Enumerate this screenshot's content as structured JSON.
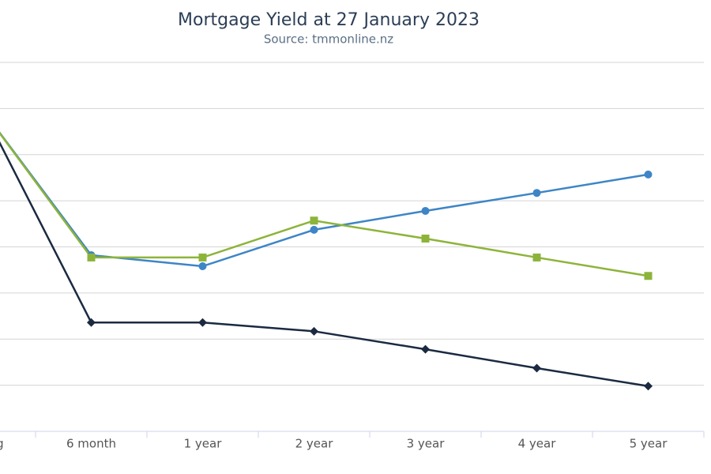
{
  "chart_data": {
    "type": "line",
    "title": "Mortgage Yield at 27 January 2023",
    "subtitle": "Source: tmmonline.nz",
    "categories": [
      "Floating",
      "6 month",
      "1 year",
      "2 year",
      "3 year",
      "4 year",
      "5 year"
    ],
    "series": [
      {
        "color": "#1b2a41",
        "marker": "diamond",
        "values": [
          7.1,
          2.36,
          2.36,
          2.17,
          1.78,
          1.37,
          0.98
        ]
      },
      {
        "color": "#3d85c6",
        "marker": "circle",
        "values": [
          7.05,
          3.82,
          3.58,
          4.37,
          4.78,
          5.17,
          5.57
        ]
      },
      {
        "color": "#8cb43a",
        "marker": "square",
        "values": [
          7.05,
          3.77,
          3.77,
          4.57,
          4.18,
          3.77,
          3.37
        ]
      }
    ],
    "ylim": [
      0,
      8
    ],
    "yticks": [
      1,
      2,
      3,
      4,
      5,
      6,
      7,
      8
    ],
    "grid": true
  }
}
